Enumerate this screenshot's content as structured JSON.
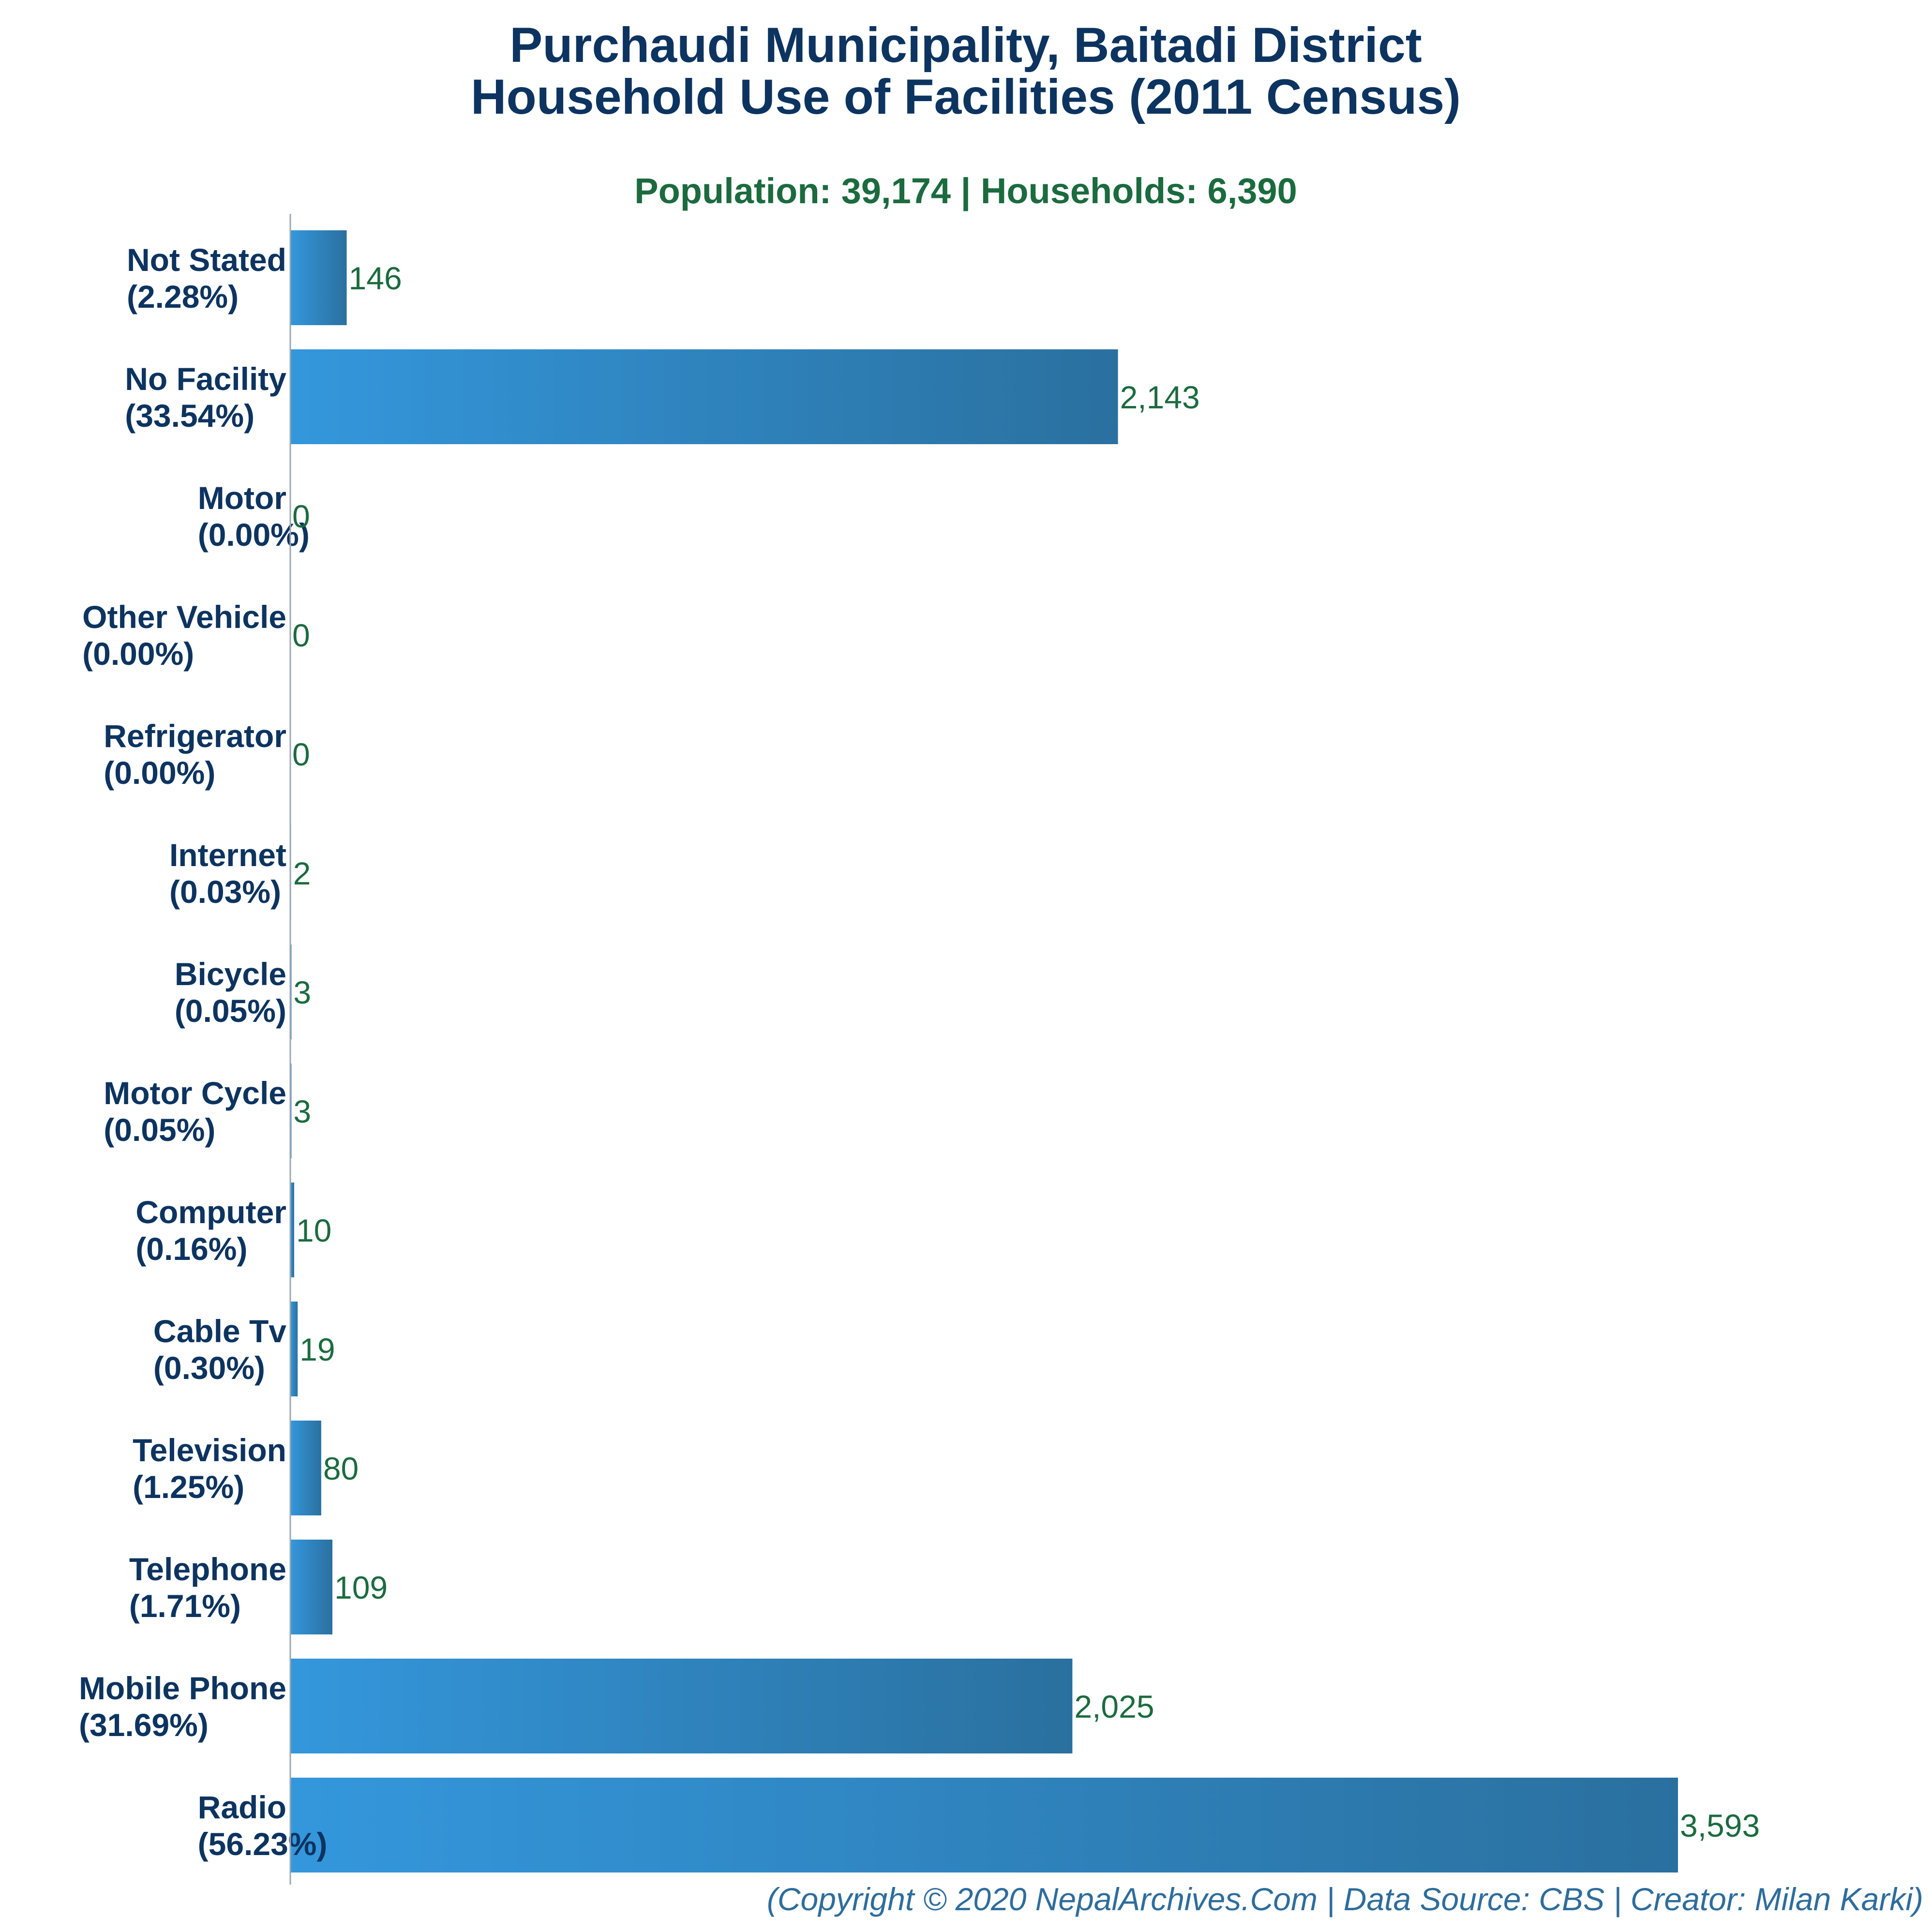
{
  "title_line1": "Purchaudi Municipality, Baitadi District",
  "title_line2": "Household Use of Facilities (2011 Census)",
  "subtitle": "Population: 39,174 | Households: 6,390",
  "footer": "(Copyright © 2020 NepalArchives.Com | Data Source: CBS | Creator: Milan Karki)",
  "colors": {
    "bar_start": "#3497dc",
    "bar_end": "#2a709f",
    "title": "#0d3460",
    "subtitle": "#1b6b3e",
    "value": "#1b6b3e",
    "footer": "#2e6d9c",
    "axis": "#9aa7b2"
  },
  "chart_data": {
    "type": "bar",
    "orientation": "horizontal",
    "categories": [
      "Not Stated",
      "No Facility",
      "Motor",
      "Other Vehicle",
      "Refrigerator",
      "Internet",
      "Bicycle",
      "Motor Cycle",
      "Computer",
      "Cable Tv",
      "Television",
      "Telephone",
      "Mobile Phone",
      "Radio"
    ],
    "percent_labels": [
      "(2.28%)",
      "(33.54%)",
      "(0.00%)",
      "(0.00%)",
      "(0.00%)",
      "(0.03%)",
      "(0.05%)",
      "(0.05%)",
      "(0.16%)",
      "(0.30%)",
      "(1.25%)",
      "(1.71%)",
      "(31.69%)",
      "(56.23%)"
    ],
    "values": [
      146,
      2143,
      0,
      0,
      0,
      2,
      3,
      3,
      10,
      19,
      80,
      109,
      2025,
      3593
    ],
    "value_labels": [
      "146",
      "2,143",
      "0",
      "0",
      "0",
      "2",
      "3",
      "3",
      "10",
      "19",
      "80",
      "109",
      "2,025",
      "3,593"
    ],
    "xlim": [
      0,
      3593
    ],
    "grid": false,
    "legend": "none"
  }
}
